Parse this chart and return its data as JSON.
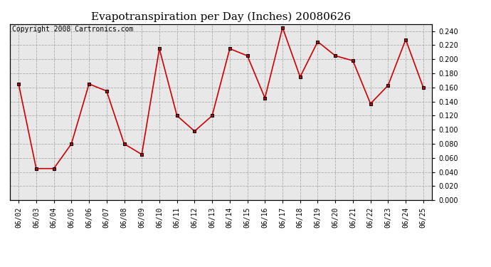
{
  "title": "Evapotranspiration per Day (Inches) 20080626",
  "copyright": "Copyright 2008 Cartronics.com",
  "dates": [
    "06/02",
    "06/03",
    "06/04",
    "06/05",
    "06/06",
    "06/07",
    "06/08",
    "06/09",
    "06/10",
    "06/11",
    "06/12",
    "06/13",
    "06/14",
    "06/15",
    "06/16",
    "06/17",
    "06/18",
    "06/19",
    "06/20",
    "06/21",
    "06/22",
    "06/23",
    "06/24",
    "06/25"
  ],
  "values": [
    0.165,
    0.045,
    0.045,
    0.08,
    0.165,
    0.155,
    0.08,
    0.065,
    0.215,
    0.12,
    0.098,
    0.12,
    0.215,
    0.205,
    0.145,
    0.245,
    0.175,
    0.225,
    0.205,
    0.198,
    0.137,
    0.163,
    0.228,
    0.16
  ],
  "line_color": "#cc0000",
  "marker": "s",
  "marker_color": "#000000",
  "marker_size": 3,
  "ylim": [
    0.0,
    0.25
  ],
  "ytick_step": 0.02,
  "background_color": "#ffffff",
  "plot_bg_color": "#e8e8e8",
  "grid_color": "#aaaaaa",
  "title_fontsize": 11,
  "copyright_fontsize": 7,
  "tick_fontsize": 7,
  "figwidth": 6.9,
  "figheight": 3.75,
  "dpi": 100
}
